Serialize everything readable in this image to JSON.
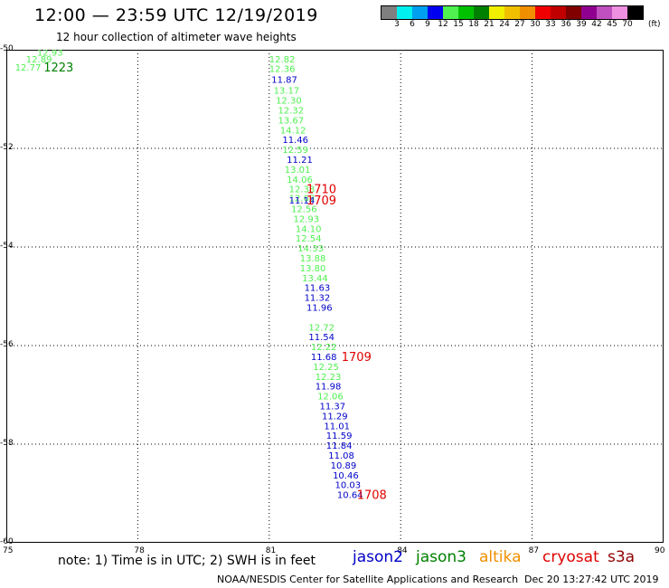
{
  "header": {
    "title": "12:00 — 23:59 UTC 12/19/2019",
    "subtitle": "12 hour collection of altimeter wave heights"
  },
  "legend": {
    "colors": [
      "#808080",
      "#00f0f0",
      "#00a0f0",
      "#0000f0",
      "#50f050",
      "#00c000",
      "#008000",
      "#f0f000",
      "#f0c000",
      "#f09000",
      "#f00000",
      "#c00000",
      "#800000",
      "#900090",
      "#c050c0",
      "#f090e0",
      "#000000"
    ],
    "labels": [
      "3",
      "6",
      "9",
      "12",
      "15",
      "18",
      "21",
      "24",
      "27",
      "30",
      "33",
      "36",
      "39",
      "42",
      "45",
      "70"
    ],
    "unit": "(ft)"
  },
  "chart_data": {
    "type": "scatter",
    "xlim": [
      75,
      90
    ],
    "ylim": [
      -60,
      -50
    ],
    "x_ticks": [
      "75",
      "78",
      "81",
      "84",
      "87",
      "90"
    ],
    "y_ticks": [
      "-50",
      "-52",
      "-54",
      "-56",
      "-58",
      "-60"
    ],
    "grid": true,
    "series": [
      {
        "name": "jason3",
        "color": "#50f050",
        "points": [
          {
            "x": 75.7,
            "y": -50.05,
            "label": "12.93"
          },
          {
            "x": 75.45,
            "y": -50.18,
            "label": "12.89"
          },
          {
            "x": 75.2,
            "y": -50.35,
            "label": "12.77"
          },
          {
            "x": 81.0,
            "y": -50.18,
            "label": "12.82"
          },
          {
            "x": 81.0,
            "y": -50.38,
            "label": "12.36"
          },
          {
            "x": 81.1,
            "y": -50.82,
            "label": "13.17"
          },
          {
            "x": 81.15,
            "y": -51.02,
            "label": "12.30"
          },
          {
            "x": 81.2,
            "y": -51.22,
            "label": "12.32"
          },
          {
            "x": 81.2,
            "y": -51.42,
            "label": "13.67"
          },
          {
            "x": 81.25,
            "y": -51.62,
            "label": "14.12"
          },
          {
            "x": 81.3,
            "y": -52.02,
            "label": "12.59"
          },
          {
            "x": 81.35,
            "y": -52.42,
            "label": "13.01"
          },
          {
            "x": 81.4,
            "y": -52.62,
            "label": "14.06"
          },
          {
            "x": 81.45,
            "y": -52.82,
            "label": "12.38"
          },
          {
            "x": 81.45,
            "y": -53.0,
            "label": "12.63"
          },
          {
            "x": 81.5,
            "y": -53.22,
            "label": "12.56"
          },
          {
            "x": 81.55,
            "y": -53.42,
            "label": "12.93"
          },
          {
            "x": 81.6,
            "y": -53.62,
            "label": "14.10"
          },
          {
            "x": 81.6,
            "y": -53.82,
            "label": "12.54"
          },
          {
            "x": 81.65,
            "y": -54.02,
            "label": "14.33"
          },
          {
            "x": 81.7,
            "y": -54.22,
            "label": "13.88"
          },
          {
            "x": 81.7,
            "y": -54.42,
            "label": "13.80"
          },
          {
            "x": 81.75,
            "y": -54.62,
            "label": "13.44"
          },
          {
            "x": 81.9,
            "y": -55.62,
            "label": "12.72"
          },
          {
            "x": 81.95,
            "y": -56.02,
            "label": "12.22"
          },
          {
            "x": 82.0,
            "y": -56.42,
            "label": "12.25"
          },
          {
            "x": 82.05,
            "y": -56.62,
            "label": "12.23"
          },
          {
            "x": 82.1,
            "y": -57.02,
            "label": "12.06"
          }
        ]
      },
      {
        "name": "jason2",
        "color": "#0000c8",
        "points": [
          {
            "x": 81.05,
            "y": -50.6,
            "label": "11.87"
          },
          {
            "x": 81.3,
            "y": -51.82,
            "label": "11.46"
          },
          {
            "x": 81.4,
            "y": -52.22,
            "label": "11.21"
          },
          {
            "x": 81.45,
            "y": -53.05,
            "label": "11.14"
          },
          {
            "x": 81.8,
            "y": -54.82,
            "label": "11.63"
          },
          {
            "x": 81.8,
            "y": -55.02,
            "label": "11.32"
          },
          {
            "x": 81.85,
            "y": -55.22,
            "label": "11.96"
          },
          {
            "x": 81.9,
            "y": -55.82,
            "label": "11.54"
          },
          {
            "x": 81.95,
            "y": -56.22,
            "label": "11.68"
          },
          {
            "x": 82.05,
            "y": -56.82,
            "label": "11.98"
          },
          {
            "x": 82.15,
            "y": -57.22,
            "label": "11.37"
          },
          {
            "x": 82.2,
            "y": -57.42,
            "label": "11.29"
          },
          {
            "x": 82.25,
            "y": -57.62,
            "label": "11.01"
          },
          {
            "x": 82.3,
            "y": -57.82,
            "label": "11.59"
          },
          {
            "x": 82.3,
            "y": -58.02,
            "label": "11.84"
          },
          {
            "x": 82.35,
            "y": -58.22,
            "label": "11.08"
          },
          {
            "x": 82.4,
            "y": -58.42,
            "label": "10.89"
          },
          {
            "x": 82.45,
            "y": -58.62,
            "label": "10.46"
          },
          {
            "x": 82.5,
            "y": -58.82,
            "label": "10.03"
          },
          {
            "x": 82.55,
            "y": -59.02,
            "label": "10.64"
          }
        ]
      }
    ],
    "time_labels": [
      {
        "x": 75.85,
        "y": -50.35,
        "label": "1223",
        "color": "#008000"
      },
      {
        "x": 81.85,
        "y": -52.82,
        "label": "1710",
        "color": "#e00000"
      },
      {
        "x": 81.85,
        "y": -53.05,
        "label": "1709",
        "color": "#e00000"
      },
      {
        "x": 82.65,
        "y": -56.22,
        "label": "1709",
        "color": "#e00000"
      },
      {
        "x": 83.0,
        "y": -59.02,
        "label": "1708",
        "color": "#e00000"
      }
    ]
  },
  "footer": {
    "note": "note:  1) Time is in UTC;  2) SWH is in feet",
    "satellites": [
      {
        "name": "jason2",
        "color": "#0000c8"
      },
      {
        "name": "jason3",
        "color": "#008000"
      },
      {
        "name": "altika",
        "color": "#f09000"
      },
      {
        "name": "cryosat",
        "color": "#e00000"
      },
      {
        "name": "s3a",
        "color": "#900000"
      }
    ],
    "credit": "NOAA/NESDIS Center for Satellite Applications and Research",
    "timestamp": "Dec 20 13:27:42 UTC 2019"
  }
}
